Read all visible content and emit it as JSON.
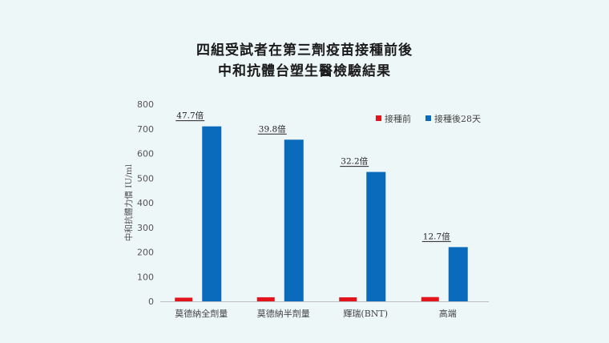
{
  "chart_data": {
    "type": "bar",
    "title": [
      "四組受試者在第三劑疫苗接種前後",
      "中和抗體台塑生醫檢驗結果"
    ],
    "ylabel": "中和抗體力價 IU/ml",
    "ylim": [
      0,
      800
    ],
    "yticks": [
      0,
      100,
      200,
      300,
      400,
      500,
      600,
      700,
      800
    ],
    "categories": [
      "莫德納全劑量",
      "莫德納半劑量",
      "輝瑞(BNT)",
      "高端"
    ],
    "series": [
      {
        "name": "接種前",
        "color": "#e3141b",
        "values": [
          14.9,
          16.5,
          16.3,
          17.3
        ]
      },
      {
        "name": "接種後28天",
        "color": "#0a6bbd",
        "values": [
          710,
          656,
          525,
          220
        ]
      }
    ],
    "annotations": [
      "47.7倍",
      "39.8倍",
      "32.2倍",
      "12.7倍"
    ],
    "legend_position": "top-right",
    "grid": false
  }
}
